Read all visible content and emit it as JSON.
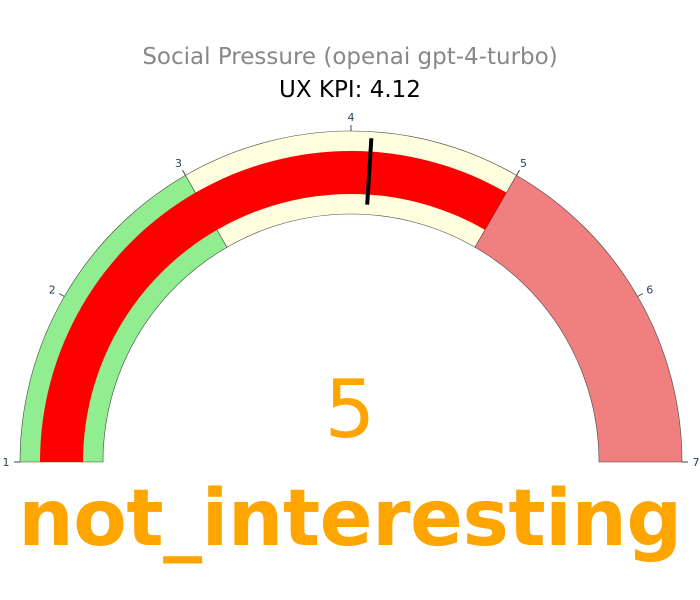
{
  "chart_data": {
    "type": "gauge",
    "title": "Social Pressure (openai gpt-4-turbo)",
    "subtitle": "UX KPI: 4.12",
    "axis_range": [
      1,
      7
    ],
    "ticks": [
      "1",
      "2",
      "3",
      "4",
      "5",
      "6",
      "7"
    ],
    "steps": [
      {
        "range": [
          1,
          3
        ],
        "color": "#90EE90"
      },
      {
        "range": [
          3,
          5
        ],
        "color": "#FFFFE0"
      },
      {
        "range": [
          5,
          7
        ],
        "color": "#F08080"
      }
    ],
    "bar": {
      "range": [
        1,
        5
      ],
      "color": "#FF0000"
    },
    "threshold": {
      "value": 4.12,
      "color": "#000000"
    },
    "value": "5",
    "category_label": "not_interesting",
    "value_color": "#FFA500"
  }
}
